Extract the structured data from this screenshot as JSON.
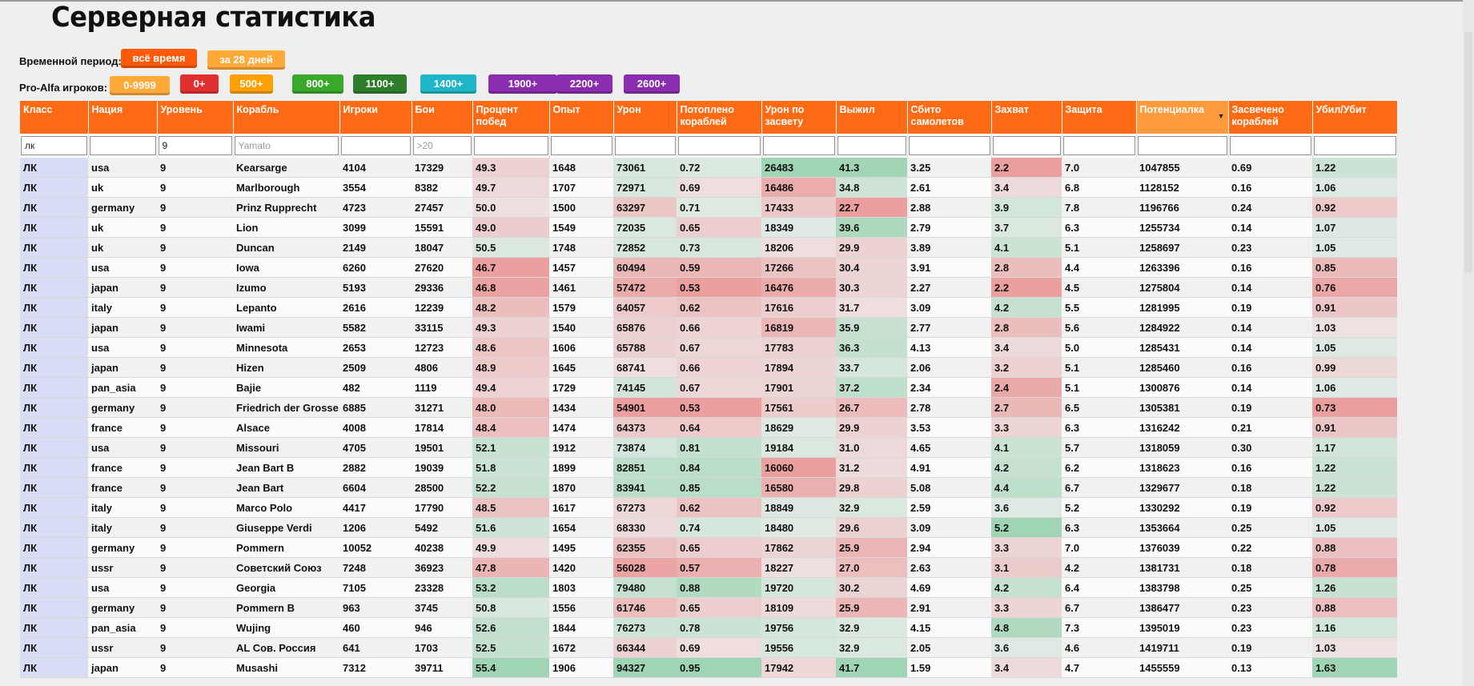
{
  "page_title": "Серверная статистика",
  "period": {
    "label": "Временной период:",
    "buttons": [
      {
        "label": "всё время",
        "color": "#ff5a0a"
      },
      {
        "label": "за 28 дней",
        "color": "#ffa938"
      }
    ]
  },
  "pr_filter": {
    "label": "Pro-Alfa игроков:",
    "buttons": [
      {
        "label": "0-9999",
        "color": "#ffa938"
      },
      {
        "label": "0+",
        "color": "#e03030"
      },
      {
        "label": "500+",
        "color": "#ffa000"
      },
      {
        "label": "800+",
        "color": "#3aa82a"
      },
      {
        "label": "1100+",
        "color": "#2e7d2a"
      },
      {
        "label": "1400+",
        "color": "#1fb6c8"
      },
      {
        "label": "1900+",
        "color": "#8a2cb0"
      },
      {
        "label": "2200+",
        "color": "#8a2cb0"
      },
      {
        "label": "2600+",
        "color": "#8a2cb0"
      }
    ]
  },
  "table": {
    "headers": [
      "Класс",
      "Нация",
      "Уровень",
      "Корабль",
      "Игроки",
      "Бои",
      "Процент побед",
      "Опыт",
      "Урон",
      "Потоплено кораблей",
      "Урон по засвету",
      "Выжил",
      "Сбито самолетов",
      "Захват",
      "Защита",
      "Потенциалка",
      "Засвечено кораблей",
      "Убил/Убит"
    ],
    "sorted_column": 15,
    "filters": {
      "values": [
        "лк",
        "",
        "9",
        "",
        "",
        "",
        "",
        "",
        "",
        "",
        "",
        "",
        "",
        "",
        "",
        "",
        "",
        ""
      ],
      "placeholders": [
        "",
        "",
        "",
        "Yamato",
        "",
        ">20",
        "",
        "",
        "",
        "",
        "",
        "",
        "",
        "",
        "",
        "",
        "",
        ""
      ]
    },
    "rows": [
      [
        "ЛК",
        "usa",
        "9",
        "Kearsarge",
        "4104",
        "17329",
        "49.3",
        "1648",
        "73061",
        "0.72",
        "26483",
        "41.3",
        "3.25",
        "2.2",
        "7.0",
        "1047855",
        "0.69",
        "1.22"
      ],
      [
        "ЛК",
        "uk",
        "9",
        "Marlborough",
        "3554",
        "8382",
        "49.7",
        "1707",
        "72971",
        "0.69",
        "16486",
        "34.8",
        "2.61",
        "3.4",
        "6.8",
        "1128152",
        "0.16",
        "1.06"
      ],
      [
        "ЛК",
        "germany",
        "9",
        "Prinz Rupprecht",
        "4723",
        "27457",
        "50.0",
        "1500",
        "63297",
        "0.71",
        "17433",
        "22.7",
        "2.88",
        "3.9",
        "7.8",
        "1196766",
        "0.24",
        "0.92"
      ],
      [
        "ЛК",
        "uk",
        "9",
        "Lion",
        "3099",
        "15591",
        "49.0",
        "1549",
        "72035",
        "0.65",
        "18349",
        "39.6",
        "2.79",
        "3.7",
        "6.3",
        "1255734",
        "0.14",
        "1.07"
      ],
      [
        "ЛК",
        "uk",
        "9",
        "Duncan",
        "2149",
        "18047",
        "50.5",
        "1748",
        "72852",
        "0.73",
        "18206",
        "29.9",
        "3.89",
        "4.1",
        "5.1",
        "1258697",
        "0.23",
        "1.05"
      ],
      [
        "ЛК",
        "usa",
        "9",
        "Iowa",
        "6260",
        "27620",
        "46.7",
        "1457",
        "60494",
        "0.59",
        "17266",
        "30.4",
        "3.91",
        "2.8",
        "4.4",
        "1263396",
        "0.16",
        "0.85"
      ],
      [
        "ЛК",
        "japan",
        "9",
        "Izumo",
        "5193",
        "29336",
        "46.8",
        "1461",
        "57472",
        "0.53",
        "16476",
        "30.3",
        "2.27",
        "2.2",
        "4.5",
        "1275804",
        "0.14",
        "0.76"
      ],
      [
        "ЛК",
        "italy",
        "9",
        "Lepanto",
        "2616",
        "12239",
        "48.2",
        "1579",
        "64057",
        "0.62",
        "17616",
        "31.7",
        "3.09",
        "4.2",
        "5.5",
        "1281995",
        "0.19",
        "0.91"
      ],
      [
        "ЛК",
        "japan",
        "9",
        "Iwami",
        "5582",
        "33115",
        "49.3",
        "1540",
        "65876",
        "0.66",
        "16819",
        "35.9",
        "2.77",
        "2.8",
        "5.6",
        "1284922",
        "0.14",
        "1.03"
      ],
      [
        "ЛК",
        "usa",
        "9",
        "Minnesota",
        "2653",
        "12723",
        "48.6",
        "1606",
        "65788",
        "0.67",
        "17783",
        "36.3",
        "4.13",
        "3.4",
        "5.0",
        "1285431",
        "0.14",
        "1.05"
      ],
      [
        "ЛК",
        "japan",
        "9",
        "Hizen",
        "2509",
        "4806",
        "48.9",
        "1645",
        "68741",
        "0.66",
        "17894",
        "33.7",
        "2.06",
        "3.2",
        "5.1",
        "1285460",
        "0.16",
        "0.99"
      ],
      [
        "ЛК",
        "pan_asia",
        "9",
        "Bajie",
        "482",
        "1119",
        "49.4",
        "1729",
        "74145",
        "0.67",
        "17901",
        "37.2",
        "2.34",
        "2.4",
        "5.1",
        "1300876",
        "0.14",
        "1.06"
      ],
      [
        "ЛК",
        "germany",
        "9",
        "Friedrich der Grosse",
        "6885",
        "31271",
        "48.0",
        "1434",
        "54901",
        "0.53",
        "17561",
        "26.7",
        "2.78",
        "2.7",
        "6.5",
        "1305381",
        "0.19",
        "0.73"
      ],
      [
        "ЛК",
        "france",
        "9",
        "Alsace",
        "4008",
        "17814",
        "48.4",
        "1474",
        "64373",
        "0.64",
        "18629",
        "29.9",
        "3.53",
        "3.3",
        "6.3",
        "1316242",
        "0.21",
        "0.91"
      ],
      [
        "ЛК",
        "usa",
        "9",
        "Missouri",
        "4705",
        "19501",
        "52.1",
        "1912",
        "73874",
        "0.81",
        "19184",
        "31.0",
        "4.65",
        "4.1",
        "5.7",
        "1318059",
        "0.30",
        "1.17"
      ],
      [
        "ЛК",
        "france",
        "9",
        "Jean Bart B",
        "2882",
        "19039",
        "51.8",
        "1899",
        "82851",
        "0.84",
        "16060",
        "31.2",
        "4.91",
        "4.2",
        "6.2",
        "1318623",
        "0.16",
        "1.22"
      ],
      [
        "ЛК",
        "france",
        "9",
        "Jean Bart",
        "6604",
        "28500",
        "52.2",
        "1870",
        "83941",
        "0.85",
        "16580",
        "29.8",
        "5.08",
        "4.4",
        "6.7",
        "1329677",
        "0.18",
        "1.22"
      ],
      [
        "ЛК",
        "italy",
        "9",
        "Marco Polo",
        "4417",
        "17790",
        "48.5",
        "1617",
        "67273",
        "0.62",
        "18849",
        "32.9",
        "2.59",
        "3.6",
        "5.2",
        "1330292",
        "0.19",
        "0.92"
      ],
      [
        "ЛК",
        "italy",
        "9",
        "Giuseppe Verdi",
        "1206",
        "5492",
        "51.6",
        "1654",
        "68330",
        "0.74",
        "18480",
        "29.6",
        "3.09",
        "5.2",
        "6.3",
        "1353664",
        "0.25",
        "1.05"
      ],
      [
        "ЛК",
        "germany",
        "9",
        "Pommern",
        "10052",
        "40238",
        "49.9",
        "1495",
        "62355",
        "0.65",
        "17862",
        "25.9",
        "2.94",
        "3.3",
        "7.0",
        "1376039",
        "0.22",
        "0.88"
      ],
      [
        "ЛК",
        "ussr",
        "9",
        "Советский Союз",
        "7248",
        "36923",
        "47.8",
        "1420",
        "56028",
        "0.57",
        "18227",
        "27.0",
        "2.63",
        "3.1",
        "4.2",
        "1381731",
        "0.18",
        "0.78"
      ],
      [
        "ЛК",
        "usa",
        "9",
        "Georgia",
        "7105",
        "23328",
        "53.2",
        "1803",
        "79480",
        "0.88",
        "19720",
        "30.2",
        "4.69",
        "4.2",
        "6.4",
        "1383798",
        "0.25",
        "1.26"
      ],
      [
        "ЛК",
        "germany",
        "9",
        "Pommern B",
        "963",
        "3745",
        "50.8",
        "1556",
        "61746",
        "0.65",
        "18109",
        "25.9",
        "2.91",
        "3.3",
        "6.7",
        "1386477",
        "0.23",
        "0.88"
      ],
      [
        "ЛК",
        "pan_asia",
        "9",
        "Wujing",
        "460",
        "946",
        "52.6",
        "1844",
        "76273",
        "0.78",
        "19756",
        "32.9",
        "4.15",
        "4.8",
        "7.3",
        "1395019",
        "0.23",
        "1.16"
      ],
      [
        "ЛК",
        "ussr",
        "9",
        "AL Сов. Россия",
        "641",
        "1703",
        "52.5",
        "1672",
        "66344",
        "0.69",
        "19556",
        "32.9",
        "2.05",
        "3.6",
        "4.6",
        "1419711",
        "0.19",
        "1.03"
      ],
      [
        "ЛК",
        "japan",
        "9",
        "Musashi",
        "7312",
        "39711",
        "55.4",
        "1906",
        "94327",
        "0.95",
        "17942",
        "41.7",
        "1.59",
        "3.4",
        "4.7",
        "1455559",
        "0.13",
        "1.63"
      ]
    ]
  }
}
